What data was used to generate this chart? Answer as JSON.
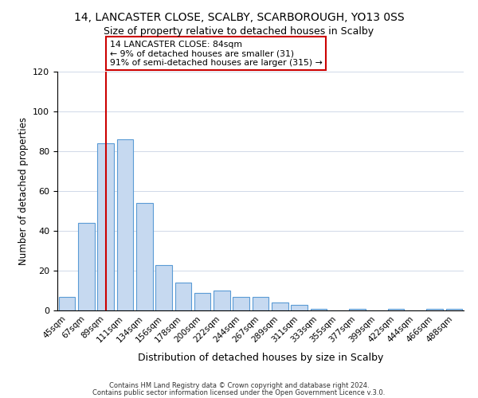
{
  "title": "14, LANCASTER CLOSE, SCALBY, SCARBOROUGH, YO13 0SS",
  "subtitle": "Size of property relative to detached houses in Scalby",
  "xlabel": "Distribution of detached houses by size in Scalby",
  "ylabel": "Number of detached properties",
  "bar_labels": [
    "45sqm",
    "67sqm",
    "89sqm",
    "111sqm",
    "134sqm",
    "156sqm",
    "178sqm",
    "200sqm",
    "222sqm",
    "244sqm",
    "267sqm",
    "289sqm",
    "311sqm",
    "333sqm",
    "355sqm",
    "377sqm",
    "399sqm",
    "422sqm",
    "444sqm",
    "466sqm",
    "488sqm"
  ],
  "bar_values": [
    7,
    44,
    84,
    86,
    54,
    23,
    14,
    9,
    10,
    7,
    7,
    4,
    3,
    1,
    0,
    1,
    0,
    1,
    0,
    1,
    1
  ],
  "bar_color": "#c6d9f0",
  "bar_edge_color": "#5a9bd5",
  "vline_x_index": 2,
  "vline_color": "#cc0000",
  "annotation_title": "14 LANCASTER CLOSE: 84sqm",
  "annotation_line1": "← 9% of detached houses are smaller (31)",
  "annotation_line2": "91% of semi-detached houses are larger (315) →",
  "annotation_box_color": "#ffffff",
  "annotation_box_edge": "#cc0000",
  "ylim": [
    0,
    120
  ],
  "yticks": [
    0,
    20,
    40,
    60,
    80,
    100,
    120
  ],
  "footer1": "Contains HM Land Registry data © Crown copyright and database right 2024.",
  "footer2": "Contains public sector information licensed under the Open Government Licence v.3.0."
}
